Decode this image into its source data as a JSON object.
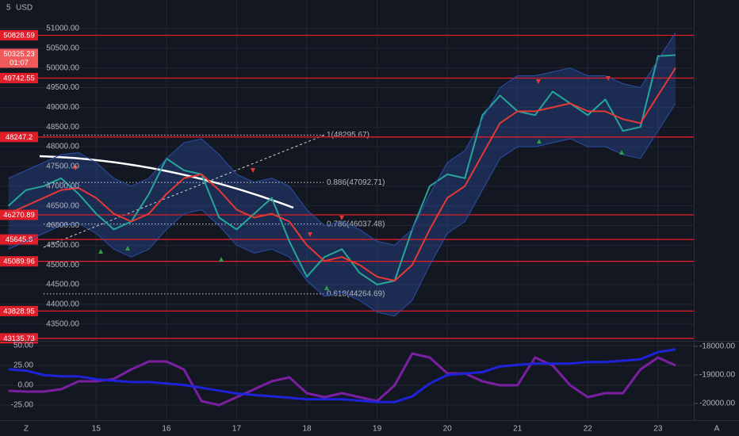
{
  "header": {
    "interval": "5",
    "currency": "USD"
  },
  "scale_buttons": [
    "Z",
    "A"
  ],
  "chart_data": [
    {
      "type": "line",
      "x": [
        13.75,
        14,
        14.25,
        14.5,
        14.75,
        15,
        15.25,
        15.5,
        15.75,
        16,
        16.25,
        16.5,
        16.75,
        17,
        17.25,
        17.5,
        17.75,
        18,
        18.25,
        18.5,
        18.75,
        19,
        19.25,
        19.5,
        19.75,
        20,
        20.25,
        20.5,
        20.75,
        21,
        21.25,
        21.5,
        21.75,
        22,
        22.25,
        22.5,
        22.75,
        23,
        23.25
      ],
      "xlim": [
        13.63,
        23.51
      ],
      "xticks": [
        15,
        16,
        17,
        18,
        19,
        20,
        21,
        22,
        23
      ],
      "ylim": [
        43072,
        51724
      ],
      "yticks": [
        {
          "value": 51000,
          "label": "51000.00"
        },
        {
          "value": 50500,
          "label": "50500.00"
        },
        {
          "value": 50000,
          "label": "50000.00"
        },
        {
          "value": 49500,
          "label": "49500.00"
        },
        {
          "value": 49000,
          "label": "49000.00"
        },
        {
          "value": 48500,
          "label": "48500.00"
        },
        {
          "value": 48000,
          "label": "48000.00"
        },
        {
          "value": 47500,
          "label": "47500.00"
        },
        {
          "value": 47000,
          "label": "47000.00"
        },
        {
          "value": 46500,
          "label": "46500.00"
        },
        {
          "value": 46000,
          "label": "46000.00"
        },
        {
          "value": 45500,
          "label": "45500.00"
        },
        {
          "value": 45000,
          "label": "45000.00"
        },
        {
          "value": 44500,
          "label": "44500.00"
        },
        {
          "value": 44000,
          "label": "44000.00"
        },
        {
          "value": 43500,
          "label": "43500.00"
        }
      ],
      "grid": true,
      "series": [
        {
          "color": "#26a69a",
          "values": [
            46500,
            46900,
            47000,
            47200,
            46800,
            46300,
            45900,
            46100,
            46800,
            47700,
            47400,
            47300,
            46200,
            45900,
            46300,
            46700,
            45600,
            44700,
            45200,
            45400,
            44800,
            44500,
            44600,
            45900,
            47000,
            47300,
            47200,
            48800,
            49300,
            48900,
            48800,
            49400,
            49100,
            48800,
            49200,
            48400,
            48500,
            50300,
            50325
          ]
        },
        {
          "color": "#e53935",
          "values": [
            46300,
            46500,
            46700,
            46900,
            46950,
            46700,
            46300,
            46100,
            46300,
            46800,
            47200,
            47300,
            46900,
            46400,
            46200,
            46300,
            46100,
            45500,
            45100,
            45200,
            45000,
            44700,
            44600,
            45000,
            45900,
            46700,
            47000,
            47800,
            48600,
            48900,
            48900,
            49000,
            49100,
            48900,
            48900,
            48700,
            48600,
            49300,
            50000
          ]
        },
        {
          "color": "#2a4fa8",
          "values": [
            47200,
            47400,
            47600,
            47800,
            47850,
            47600,
            47200,
            47000,
            47200,
            47700,
            48100,
            48200,
            47800,
            47300,
            47100,
            47200,
            47000,
            46400,
            46000,
            46100,
            45900,
            45600,
            45500,
            45900,
            46800,
            47600,
            47900,
            48700,
            49500,
            49800,
            49800,
            49900,
            50000,
            49800,
            49800,
            49600,
            49500,
            50200,
            50900
          ]
        },
        {
          "color": "#2a4fa8",
          "values": [
            45400,
            45600,
            45800,
            46000,
            46050,
            45800,
            45400,
            45200,
            45400,
            45900,
            46300,
            46400,
            46000,
            45500,
            45300,
            45400,
            45200,
            44600,
            44200,
            44300,
            44100,
            43800,
            43700,
            44100,
            45000,
            45800,
            46100,
            46900,
            47700,
            48000,
            48000,
            48100,
            48200,
            48000,
            48000,
            47800,
            47700,
            48400,
            49100
          ]
        }
      ],
      "levels": [
        50828.59,
        49742.55,
        48247.2,
        46270.89,
        45645.8,
        45089.96,
        43828.95,
        43135.73
      ],
      "level_color": "#e01e2a",
      "last_price": 50325.23,
      "countdown": "01:07",
      "fib_levels": [
        {
          "value": 48295.67,
          "label": "1(48295.67)"
        },
        {
          "value": 47092.71,
          "label": "0.886(47092.71)"
        },
        {
          "value": 46037.48,
          "label": "0.786(46037.48)"
        },
        {
          "value": 44264.69,
          "label": "0.618(44264.69)"
        }
      ]
    },
    {
      "type": "line",
      "x": [
        13.75,
        14,
        14.25,
        14.5,
        14.75,
        15,
        15.25,
        15.5,
        15.75,
        16,
        16.25,
        16.5,
        16.75,
        17,
        17.25,
        17.5,
        17.75,
        18,
        18.25,
        18.5,
        18.75,
        19,
        19.25,
        19.5,
        19.75,
        20,
        20.25,
        20.5,
        20.75,
        21,
        21.25,
        21.5,
        21.75,
        22,
        22.25,
        22.5,
        22.75,
        23,
        23.25
      ],
      "ylim": [
        -44,
        56
      ],
      "yticks": [
        {
          "value": 50,
          "label": "50.00"
        },
        {
          "value": 25,
          "label": "25.00"
        },
        {
          "value": 0,
          "label": "0.00"
        },
        {
          "value": -25,
          "label": "-25.00"
        }
      ],
      "y2lim": [
        -20583,
        -17806
      ],
      "y2ticks": [
        {
          "value": -18000,
          "label": "-18000.00"
        },
        {
          "value": -19000,
          "label": "-19000.00"
        },
        {
          "value": -20000,
          "label": "-20000.00"
        }
      ],
      "series": [
        {
          "color": "#7b1fa2",
          "values": [
            -7,
            -8,
            -8,
            -5,
            5,
            5,
            8,
            20,
            30,
            30,
            20,
            -20,
            -25,
            -15,
            -5,
            5,
            10,
            -10,
            -15,
            -10,
            -15,
            -20,
            0,
            40,
            35,
            15,
            15,
            5,
            0,
            0,
            35,
            25,
            0,
            -15,
            -10,
            -10,
            20,
            35,
            25
          ]
        },
        {
          "color": "#1e22d8",
          "axis": "y2",
          "values": [
            -18800,
            -18850,
            -19000,
            -19050,
            -19050,
            -19150,
            -19200,
            -19250,
            -19250,
            -19300,
            -19350,
            -19450,
            -19550,
            -19650,
            -19700,
            -19750,
            -19800,
            -19850,
            -19850,
            -19850,
            -19900,
            -19950,
            -19950,
            -19750,
            -19300,
            -19000,
            -18950,
            -18900,
            -18700,
            -18650,
            -18600,
            -18600,
            -18600,
            -18550,
            -18550,
            -18500,
            -18450,
            -18200,
            -18100
          ]
        }
      ]
    }
  ]
}
